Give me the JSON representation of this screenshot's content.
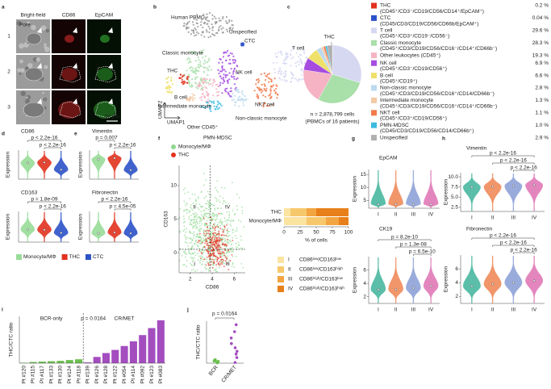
{
  "chart_data": [
    {
      "type": "images",
      "panel": "a",
      "column_labels": [
        "Bright-field",
        "CD86",
        "EpCAM"
      ],
      "row_labels": [
        "1",
        "2",
        "3"
      ],
      "annotation": "Pore",
      "scale_bar": "50 µm"
    },
    {
      "type": "umap",
      "panel": "b",
      "title": "Human PBMC",
      "clusters": [
        "THC",
        "CTC",
        "T cell",
        "Classic monocyte",
        "B cell",
        "NK cell",
        "Intermediate monocyte",
        "Other CD45⁺",
        "PMN-MDSC",
        "Non-classic monocyte",
        "NKT cell",
        "Unspecified"
      ],
      "colors": [
        "#e2321f",
        "#2c52c8",
        "#d6d8f2",
        "#a9dfa9",
        "#efe06a",
        "#a64de0",
        "#f3c9a5",
        "#f5b3c4",
        "#3cbbe0",
        "#bcd9ee",
        "#f27a4c",
        "#9a9a9a"
      ],
      "xlabel": "UMAP1",
      "ylabel": "UMAP2"
    },
    {
      "type": "pie",
      "panel": "c",
      "categories": [
        "THC",
        "CTC",
        "T cell",
        "Classic monocyte",
        "Other leukocytes (CD45⁺)",
        "NK cell",
        "B cell",
        "Non-classic monocyte",
        "Intermediate monocyte",
        "NKT cell",
        "PMN-MDSC",
        "Unspecified"
      ],
      "markers": [
        "(CD45⁺/CD3⁻/CD19/CD56/CD14⁺/EpCAM⁺)",
        "(CD45/CD3/CD19/CD56/CD66b/EpCAM⁺)",
        "(CD45⁺/CD3⁺/CD19⁻/CD56⁻)",
        "(CD45⁺/CD3/CD19/CD56/CD16⁻/CD14⁺/CD66b⁻)",
        null,
        "(CD45⁺/CD3⁻/CD19/CD56⁺)",
        "(CD45⁺/CD19⁺)",
        "(CD45⁺/CD3/CD19/CD56/CD16⁺/CD14/CD66b⁻)",
        "(CD45⁺/CD3/CD19/CD56/CD16⁺/CD14⁺/CD66b⁻)",
        "(CD45⁺/CD3⁺/CD19/CD56⁺)",
        "(CD45/CD3/CD19/CD56/CD14/CD66b⁺)",
        null
      ],
      "values": [
        0.2,
        0.04,
        29.6,
        28.3,
        19.3,
        6.9,
        6.6,
        2.8,
        1.3,
        1.1,
        1.0,
        2.9
      ],
      "value_labels": [
        "0.2 %",
        "0.04 %",
        "29.6 %",
        "28.3 %",
        "19.3 %",
        "6.9 %",
        "6.6 %",
        "2.8 %",
        "1.3 %",
        "1.1 %",
        "1.0 %",
        "2.9 %"
      ],
      "colors": [
        "#e2321f",
        "#2c52c8",
        "#d6d8f2",
        "#a9dfa9",
        "#f5b3c4",
        "#a64de0",
        "#efe06a",
        "#bcd9ee",
        "#f3c9a5",
        "#f27a4c",
        "#3cbbe0",
        "#b0b0b0"
      ],
      "annotation": "THC",
      "note": [
        "n = 2,878,799 cells",
        "(PBMCs of 16 patients)"
      ]
    },
    {
      "type": "violin",
      "panel": "d",
      "title": "CD86",
      "ylabel": "Expression",
      "values": [
        4.5,
        4.6,
        2.6
      ],
      "colors": [
        "#98dc98",
        "#e2321f",
        "#2c52c8"
      ],
      "ylim": [
        0,
        8
      ],
      "comparisons": [
        {
          "label": "p < 2.2e-16",
          "pair": [
            "Monocyte/MΦ",
            "CTC"
          ]
        },
        {
          "label": "p < 2.2e-16",
          "pair": [
            "THC",
            "CTC"
          ]
        }
      ]
    },
    {
      "type": "violin",
      "title": "CD163",
      "ylabel": "Expression",
      "values": [
        2.5,
        2.4,
        1.8
      ],
      "colors": [
        "#98dc98",
        "#e2321f",
        "#2c52c8"
      ],
      "ylim": [
        0,
        6
      ],
      "comparisons": [
        {
          "label": "p = 1.8e-09",
          "pair": [
            "Monocyte/MΦ",
            "CTC"
          ]
        },
        {
          "label": "p < 2.2e-16",
          "pair": [
            "THC",
            "CTC"
          ]
        }
      ]
    },
    {
      "type": "violin",
      "panel": "e",
      "title": "Vimentin",
      "ylabel": "Expression",
      "values": [
        7.5,
        7.8,
        4.5
      ],
      "colors": [
        "#98dc98",
        "#e2321f",
        "#2c52c8"
      ],
      "ylim": [
        2,
        10
      ],
      "comparisons": [
        {
          "label": "p = 0.007",
          "pair": [
            "Monocyte/MΦ",
            "THC"
          ]
        },
        {
          "label": "p < 2.2e-16",
          "pair": [
            "THC",
            "CTC"
          ]
        }
      ]
    },
    {
      "type": "violin",
      "title": "Fibronectin",
      "ylabel": "Expression",
      "values": [
        3.0,
        3.2,
        3.0
      ],
      "colors": [
        "#98dc98",
        "#e2321f",
        "#2c52c8"
      ],
      "ylim": [
        1,
        8
      ],
      "comparisons": [
        {
          "label": "p < 2.2e-16",
          "pair": [
            "Monocyte/MΦ",
            "CTC"
          ]
        },
        {
          "label": "p = 4.5e-05",
          "pair": [
            "THC",
            "CTC"
          ]
        }
      ]
    },
    {
      "type": "legend",
      "categories": [
        "Monocyte/MΦ",
        "THC",
        "CTC"
      ],
      "colors": [
        "#98dc98",
        "#e2321f",
        "#2c52c8"
      ]
    },
    {
      "type": "density",
      "panel": "f",
      "series": [
        {
          "name": "Monocyte/MΦ",
          "color": "#8ed88e"
        },
        {
          "name": "THC",
          "color": "#e2321f"
        }
      ],
      "xlabel": "CD86",
      "ylabel": "CD163",
      "xlim": [
        1,
        7
      ],
      "xticks": [
        2,
        4,
        6
      ],
      "ylim": [
        -3,
        13
      ],
      "yticks": [
        0,
        5,
        10
      ],
      "thresholds": {
        "x": 3.8,
        "y": 0.5
      },
      "quadrants": [
        "I",
        "II",
        "III",
        "IV"
      ]
    },
    {
      "type": "stacked-barh",
      "categories": [
        "THC",
        "Monocyte/MΦ"
      ],
      "series": [
        {
          "name": "I",
          "description": "CD86ˡᵒʷ/CD163ˡᵒʷ",
          "color": "#fbe3a0",
          "values": [
            10,
            35
          ]
        },
        {
          "name": "II",
          "description": "CD86ˡᵒʷ/CD163ʰⁱᵍʰ",
          "color": "#f7c86b",
          "values": [
            25,
            30
          ]
        },
        {
          "name": "III",
          "description": "CD86ʰⁱᵍʰ/CD163ˡᵒʷ",
          "color": "#f2a541",
          "values": [
            15,
            20
          ]
        },
        {
          "name": "IV",
          "description": "CD86ʰⁱᵍʰ/CD163ʰⁱᵍʰ",
          "color": "#e8801a",
          "values": [
            50,
            15
          ]
        }
      ],
      "xlim": [
        0,
        100
      ],
      "xticks": [
        0,
        25,
        50,
        75,
        100
      ],
      "xlabel": "% of cells"
    },
    {
      "type": "violin",
      "panel": "g",
      "title": "EpCAM",
      "ylabel": "Expression",
      "categories": [
        "I",
        "II",
        "III",
        "IV"
      ],
      "values": [
        3.5,
        3.5,
        3.5,
        3.5
      ],
      "colors": [
        "#49b8a0",
        "#f08a5a",
        "#8ea2d8",
        "#e07ab8"
      ],
      "ylim": [
        2,
        17
      ],
      "yticks": [
        5,
        10,
        15
      ],
      "comparisons": []
    },
    {
      "type": "violin",
      "title": "CK19",
      "ylabel": "Expression",
      "categories": [
        "I",
        "II",
        "III",
        "IV"
      ],
      "values": [
        3.1,
        3.1,
        3.3,
        3.6
      ],
      "colors": [
        "#49b8a0",
        "#f08a5a",
        "#8ea2d8",
        "#e07ab8"
      ],
      "ylim": [
        1,
        8
      ],
      "yticks": [
        2,
        4,
        6
      ],
      "comparisons": [
        {
          "label": "p = 8.2e-10",
          "pair": [
            "I",
            "IV"
          ]
        },
        {
          "label": "p = 1.3e-08",
          "pair": [
            "II",
            "IV"
          ]
        },
        {
          "label": "p = 6.5e-10",
          "pair": [
            "III",
            "IV"
          ]
        }
      ]
    },
    {
      "type": "violin",
      "panel": "h",
      "title": "Vimentin",
      "ylabel": "Expression",
      "categories": [
        "I",
        "II",
        "III",
        "IV"
      ],
      "values": [
        7.5,
        7.6,
        7.8,
        8.0
      ],
      "colors": [
        "#49b8a0",
        "#f08a5a",
        "#8ea2d8",
        "#e07ab8"
      ],
      "ylim": [
        1.5,
        11
      ],
      "yticks": [
        {
          "value": 2.5,
          "label": "2.5"
        },
        {
          "value": 5,
          "label": "5.0"
        },
        {
          "value": 7.5,
          "label": "7.5"
        },
        {
          "value": 10,
          "label": "10.0"
        }
      ],
      "comparisons": [
        {
          "label": "p < 2.2e-16",
          "pair": [
            "I",
            "IV"
          ]
        },
        {
          "label": "p < 2.2e-16",
          "pair": [
            "II",
            "IV"
          ]
        },
        {
          "label": "p < 2.2e-16",
          "pair": [
            "III",
            "IV"
          ]
        }
      ]
    },
    {
      "type": "violin",
      "title": "Fibronectin",
      "ylabel": "Expression",
      "categories": [
        "I",
        "II",
        "III",
        "IV"
      ],
      "values": [
        3.5,
        3.8,
        4.0,
        4.3
      ],
      "colors": [
        "#49b8a0",
        "#f08a5a",
        "#8ea2d8",
        "#e07ab8"
      ],
      "ylim": [
        1,
        8
      ],
      "yticks": [
        2,
        4,
        6
      ],
      "comparisons": [
        {
          "label": "p < 2.2e-16",
          "pair": [
            "I",
            "IV"
          ]
        },
        {
          "label": "p < 2.2e-16",
          "pair": [
            "II",
            "IV"
          ]
        },
        {
          "label": "p < 2.2e-16",
          "pair": [
            "III",
            "IV"
          ]
        }
      ]
    },
    {
      "type": "bar",
      "panel": "i",
      "ylabel": "THC/CTC ratio",
      "annotation": "p = 0.0164",
      "ylim": [
        0,
        60
      ],
      "series": [
        {
          "name": "BCR-only",
          "color": "#6bbf4e",
          "categories": [
            "Pt #120",
            "Pt #115",
            "Pt #117",
            "Pt #133",
            "Pt #130",
            "Pt #124",
            "Pt #118"
          ],
          "values": [
            0.5,
            1.5,
            2,
            2.5,
            3,
            4,
            5
          ]
        },
        {
          "name": "CR/MET",
          "color": "#a34dbf",
          "categories": [
            "Pt #139",
            "Pt #126",
            "Pt #128",
            "Pt #122",
            "Pt #054",
            "Pt #114",
            "Pt #092",
            "Pt #123",
            "Pt #083"
          ],
          "values": [
            1,
            8,
            13,
            17,
            22,
            28,
            36,
            45,
            55
          ]
        }
      ]
    },
    {
      "type": "strip",
      "panel": "j",
      "ylabel": "THC/CTC ratio",
      "categories": [
        "BCR",
        "CR/MET"
      ],
      "annotation": "p = 0.0164",
      "ylim": [
        0,
        60
      ]
    }
  ]
}
